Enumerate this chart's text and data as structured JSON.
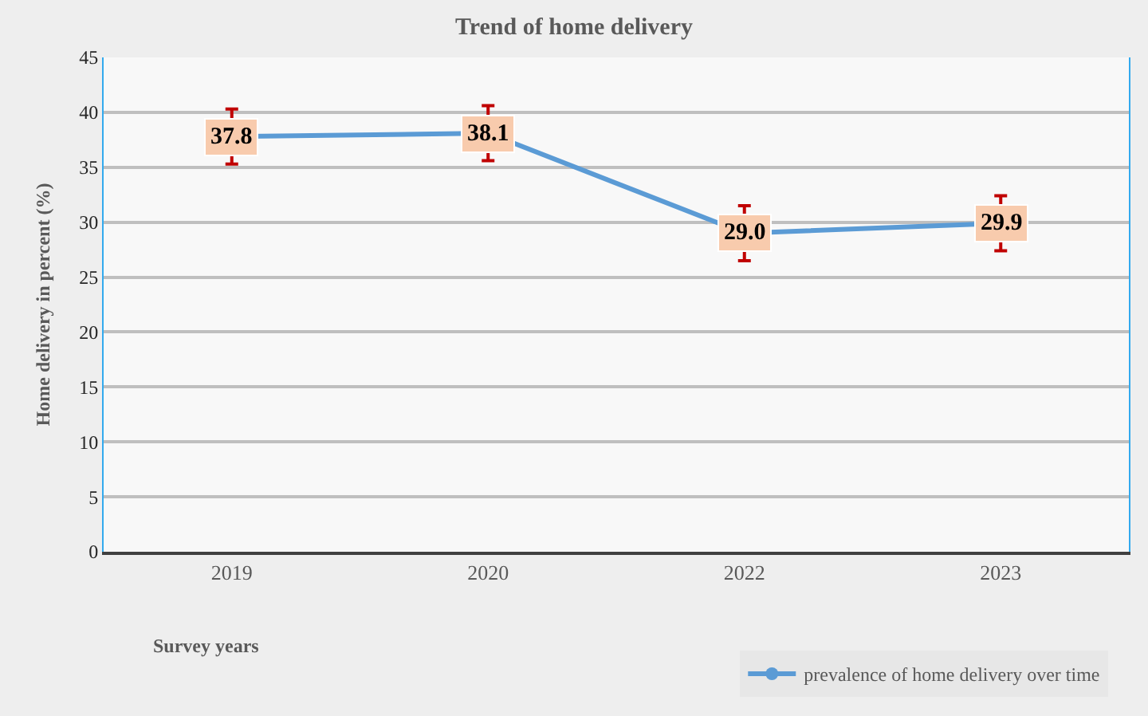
{
  "chart_data": {
    "type": "line",
    "title": "Trend of home delivery",
    "xlabel": "Survey years",
    "ylabel": "Home delivery in percent (%)",
    "categories": [
      "2019",
      "2020",
      "2022",
      "2023"
    ],
    "series": [
      {
        "name": "prevalence of home delivery over time",
        "color": "#5b9bd5",
        "values": [
          37.8,
          38.1,
          29.0,
          29.9
        ],
        "errors": [
          2.5,
          2.5,
          2.5,
          2.5
        ],
        "value_labels": [
          "37.8",
          "38.1",
          "29.0",
          "29.9"
        ]
      }
    ],
    "ylim": [
      0,
      45
    ],
    "yticks": [
      0,
      5,
      10,
      15,
      20,
      25,
      30,
      35,
      40,
      45
    ],
    "grid": "y",
    "legend": "bottom right",
    "marker": "circle",
    "line_style": "solid"
  }
}
